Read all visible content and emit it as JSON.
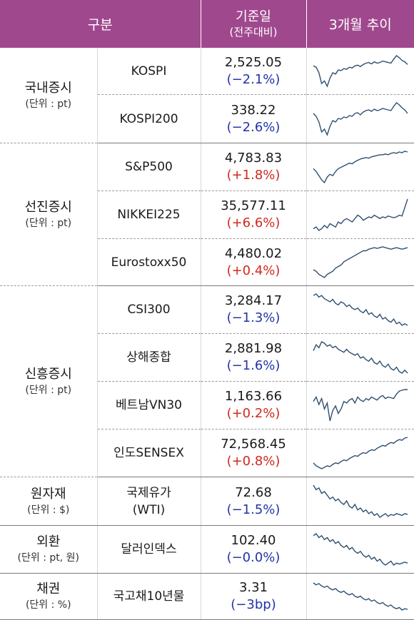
{
  "header": {
    "col_category": "구분",
    "col_date": "기준일",
    "col_date_sub": "(전주대비)",
    "col_trend": "3개월 추이"
  },
  "colors": {
    "header_bg": "#a0488e",
    "negative": "#2233aa",
    "positive": "#d0281e"
  },
  "groups": [
    {
      "name": "국내증시",
      "unit": "(단위 : pt)",
      "rows": [
        {
          "name": "KOSPI",
          "value": "2,525.05",
          "change": "(−2.1%)",
          "dir": "neg",
          "trend": [
            40,
            38,
            30,
            14,
            18,
            10,
            22,
            30,
            28,
            34,
            33,
            36,
            35,
            38,
            37,
            40,
            41,
            39,
            42,
            44,
            45,
            43,
            46,
            44,
            45,
            47,
            46,
            45,
            44,
            50,
            55,
            52,
            48,
            46,
            42
          ]
        },
        {
          "name": "KOSPI200",
          "value": "338.22",
          "change": "(−2.6%)",
          "dir": "neg",
          "trend": [
            40,
            36,
            28,
            14,
            18,
            10,
            22,
            30,
            28,
            33,
            32,
            35,
            34,
            37,
            36,
            40,
            41,
            38,
            42,
            44,
            45,
            43,
            46,
            44,
            45,
            47,
            46,
            45,
            44,
            50,
            55,
            52,
            48,
            45,
            40
          ]
        }
      ]
    },
    {
      "name": "선진증시",
      "unit": "(단위 : pt)",
      "rows": [
        {
          "name": "S&P500",
          "value": "4,783.83",
          "change": "(+1.8%)",
          "dir": "pos",
          "trend": [
            30,
            26,
            20,
            14,
            10,
            18,
            22,
            20,
            26,
            30,
            32,
            34,
            36,
            38,
            37,
            40,
            42,
            44,
            45,
            46,
            45,
            47,
            48,
            49,
            50,
            50,
            51,
            50,
            52,
            53,
            52,
            54,
            53,
            55,
            54
          ]
        },
        {
          "name": "NIKKEI225",
          "value": "35,577.11",
          "change": "(+6.6%)",
          "dir": "pos",
          "trend": [
            20,
            22,
            18,
            20,
            24,
            21,
            26,
            24,
            22,
            28,
            26,
            30,
            32,
            30,
            28,
            32,
            36,
            34,
            30,
            32,
            34,
            33,
            36,
            34,
            32,
            34,
            33,
            35,
            34,
            33,
            34,
            36,
            35,
            45,
            55
          ]
        },
        {
          "name": "Eurostoxx50",
          "value": "4,480.02",
          "change": "(+0.4%)",
          "dir": "pos",
          "trend": [
            22,
            20,
            16,
            14,
            12,
            16,
            18,
            20,
            24,
            26,
            28,
            32,
            34,
            36,
            38,
            40,
            42,
            44,
            46,
            46,
            48,
            49,
            50,
            49,
            50,
            51,
            50,
            49,
            48,
            49,
            50,
            49,
            48,
            49,
            50
          ]
        }
      ]
    },
    {
      "name": "신흥증시",
      "unit": "(단위 : pt)",
      "rows": [
        {
          "name": "CSI300",
          "value": "3,284.17",
          "change": "(−1.3%)",
          "dir": "neg",
          "trend": [
            50,
            52,
            48,
            50,
            46,
            44,
            42,
            45,
            40,
            38,
            42,
            40,
            36,
            38,
            34,
            32,
            34,
            30,
            28,
            32,
            26,
            28,
            24,
            22,
            26,
            20,
            22,
            18,
            16,
            20,
            14,
            16,
            12,
            14,
            12
          ]
        },
        {
          "name": "상해종합",
          "value": "2,881.98",
          "change": "(−1.6%)",
          "dir": "neg",
          "trend": [
            40,
            48,
            44,
            52,
            50,
            46,
            48,
            44,
            46,
            42,
            40,
            38,
            42,
            38,
            36,
            34,
            36,
            30,
            32,
            28,
            26,
            30,
            24,
            22,
            26,
            20,
            18,
            22,
            16,
            14,
            18,
            12,
            10,
            14,
            10
          ]
        },
        {
          "name": "베트남VN30",
          "value": "1,163.66",
          "change": "(+0.2%)",
          "dir": "pos",
          "trend": [
            40,
            46,
            36,
            44,
            30,
            38,
            14,
            28,
            34,
            24,
            30,
            40,
            38,
            42,
            44,
            38,
            46,
            42,
            40,
            44,
            42,
            46,
            44,
            42,
            46,
            48,
            44,
            46,
            45,
            44,
            50,
            54,
            55,
            56,
            56
          ]
        },
        {
          "name": "인도SENSEX",
          "value": "72,568.45",
          "change": "(+0.8%)",
          "dir": "pos",
          "trend": [
            20,
            16,
            14,
            12,
            14,
            16,
            15,
            18,
            20,
            19,
            22,
            24,
            23,
            26,
            28,
            30,
            29,
            32,
            34,
            33,
            36,
            38,
            37,
            40,
            42,
            44,
            43,
            46,
            48,
            47,
            50,
            52,
            51,
            54,
            55
          ]
        }
      ]
    },
    {
      "name": "원자재",
      "unit": "(단위 : $)",
      "rows": [
        {
          "name": "국제유가",
          "name2": "(WTI)",
          "value": "72.68",
          "change": "(−1.5%)",
          "dir": "neg",
          "trend": [
            55,
            50,
            52,
            46,
            48,
            44,
            40,
            42,
            38,
            40,
            36,
            34,
            38,
            32,
            30,
            34,
            28,
            30,
            26,
            28,
            24,
            26,
            22,
            24,
            20,
            22,
            24,
            21,
            23,
            22,
            24,
            23,
            22,
            24,
            23
          ]
        }
      ]
    },
    {
      "name": "외환",
      "unit": "(단위 : pt, 원)",
      "rows": [
        {
          "name": "달러인덱스",
          "value": "102.40",
          "change": "(−0.0%)",
          "dir": "neg",
          "trend": [
            50,
            52,
            48,
            50,
            46,
            48,
            44,
            46,
            42,
            44,
            40,
            38,
            40,
            36,
            38,
            34,
            32,
            34,
            30,
            28,
            30,
            26,
            28,
            24,
            26,
            22,
            20,
            22,
            24,
            20,
            22,
            21,
            22,
            23,
            22
          ]
        }
      ]
    },
    {
      "name": "채권",
      "unit": "(단위 : %)",
      "rows": [
        {
          "name": "국고채10년물",
          "value": "3.31",
          "change": "(−3bp)",
          "dir": "neg",
          "trend": [
            55,
            52,
            54,
            50,
            48,
            50,
            46,
            44,
            46,
            42,
            40,
            42,
            38,
            36,
            38,
            34,
            32,
            34,
            30,
            28,
            30,
            26,
            28,
            24,
            22,
            24,
            20,
            18,
            20,
            16,
            14,
            16,
            12,
            14,
            13
          ]
        }
      ]
    }
  ]
}
